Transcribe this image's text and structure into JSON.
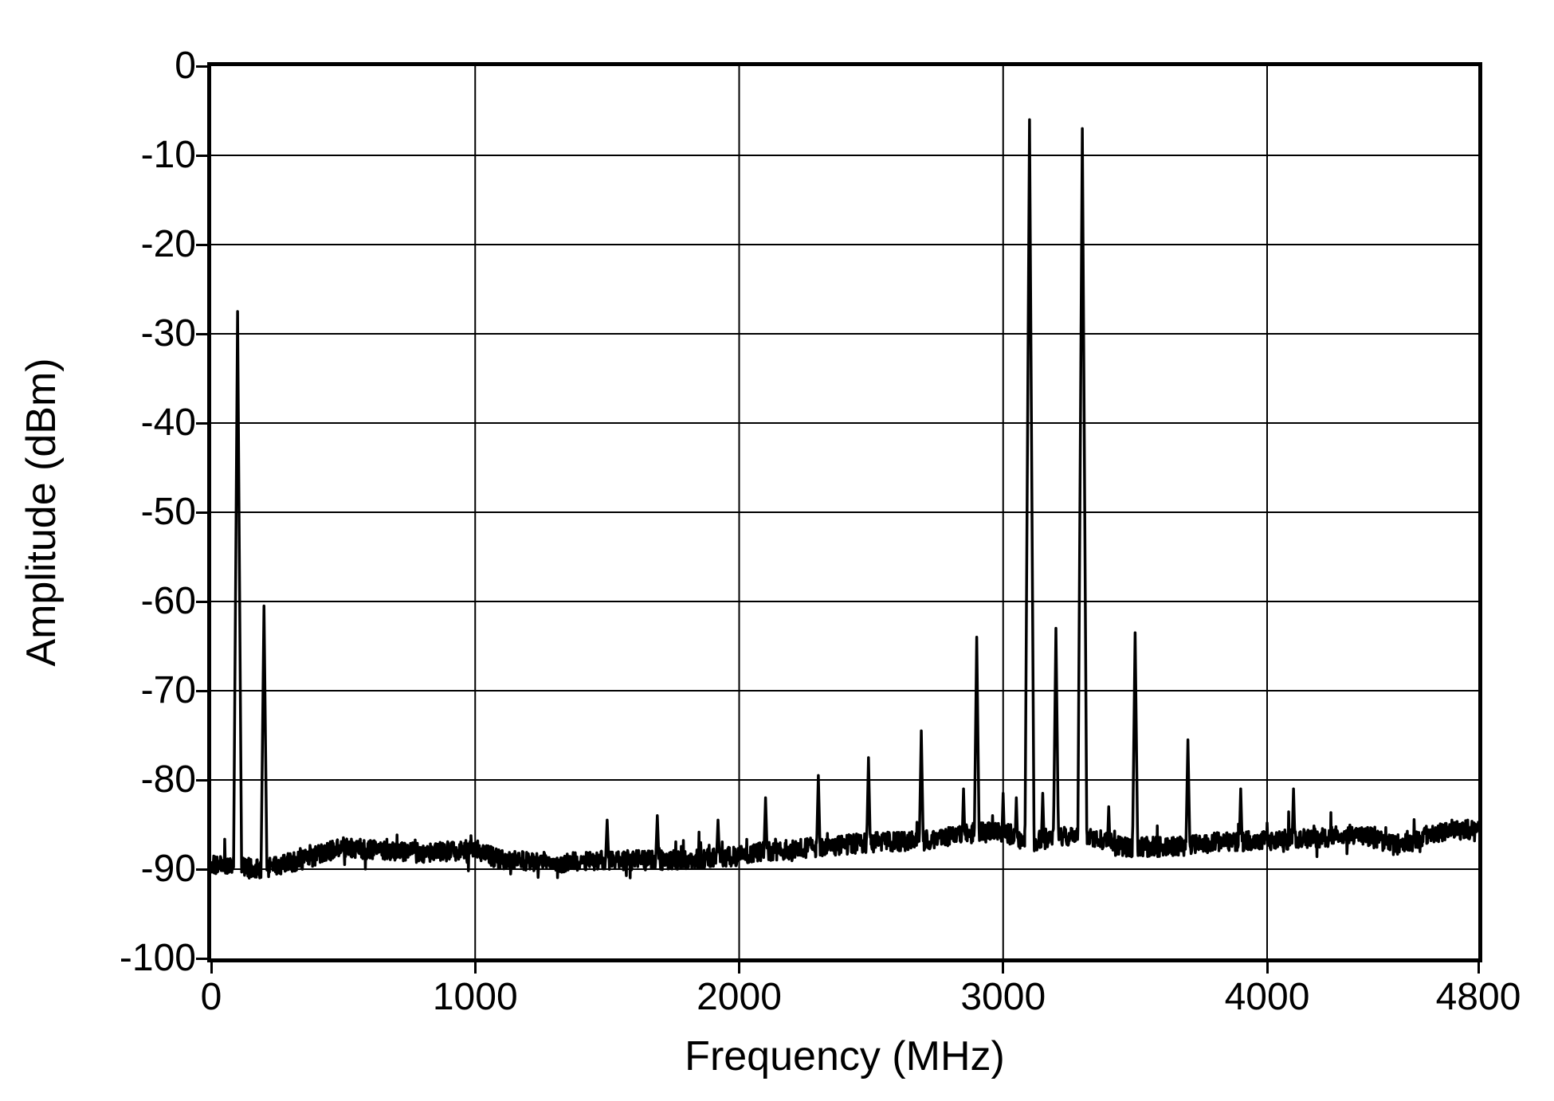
{
  "chart_data": {
    "type": "line",
    "title": "",
    "xlabel": "Frequency (MHz)",
    "ylabel": "Amplitude (dBm)",
    "xlim": [
      0,
      4800
    ],
    "ylim": [
      -100,
      0
    ],
    "grid": true,
    "legend": "none",
    "line_color": "#000000",
    "background_color": "#ffffff",
    "x_ticks": [
      {
        "v": 0,
        "label": "0"
      },
      {
        "v": 1000,
        "label": "1000"
      },
      {
        "v": 2000,
        "label": "2000"
      },
      {
        "v": 3000,
        "label": "3000"
      },
      {
        "v": 4000,
        "label": "4000"
      },
      {
        "v": 4800,
        "label": "4800"
      }
    ],
    "y_ticks": [
      {
        "v": 0,
        "label": "0"
      },
      {
        "v": -10,
        "label": "-10"
      },
      {
        "v": -20,
        "label": "-20"
      },
      {
        "v": -30,
        "label": "-30"
      },
      {
        "v": -40,
        "label": "-40"
      },
      {
        "v": -50,
        "label": "-50"
      },
      {
        "v": -60,
        "label": "-60"
      },
      {
        "v": -70,
        "label": "-70"
      },
      {
        "v": -80,
        "label": "-80"
      },
      {
        "v": -90,
        "label": "-90"
      },
      {
        "v": -100,
        "label": "-100"
      }
    ],
    "x_gridlines": [
      1000,
      2000,
      3000,
      4000
    ],
    "y_gridlines": [
      -10,
      -20,
      -30,
      -40,
      -50,
      -60,
      -70,
      -80,
      -90
    ],
    "noise_floor_profile": [
      [
        0,
        -89.5
      ],
      [
        200,
        -90.0
      ],
      [
        400,
        -88.5
      ],
      [
        500,
        -87.5
      ],
      [
        600,
        -87.8
      ],
      [
        800,
        -88.2
      ],
      [
        1000,
        -87.8
      ],
      [
        1100,
        -89.0
      ],
      [
        1300,
        -89.3
      ],
      [
        1500,
        -89.0
      ],
      [
        1700,
        -89.0
      ],
      [
        1900,
        -88.8
      ],
      [
        2000,
        -88.5
      ],
      [
        2100,
        -88.0
      ],
      [
        2300,
        -87.5
      ],
      [
        2500,
        -87.0
      ],
      [
        2700,
        -86.8
      ],
      [
        2850,
        -86.0
      ],
      [
        3000,
        -85.8
      ],
      [
        3100,
        -87.0
      ],
      [
        3200,
        -86.5
      ],
      [
        3300,
        -86.0
      ],
      [
        3450,
        -87.5
      ],
      [
        3600,
        -87.5
      ],
      [
        3800,
        -87.0
      ],
      [
        4000,
        -86.8
      ],
      [
        4200,
        -86.5
      ],
      [
        4350,
        -86.0
      ],
      [
        4500,
        -87.5
      ],
      [
        4600,
        -86.2
      ],
      [
        4700,
        -85.5
      ],
      [
        4800,
        -85.8
      ]
    ],
    "noise_jitter_db": 1.1,
    "noise_floor_ref_dbm": -91,
    "peaks": [
      {
        "freq": 100,
        "dbm": -27.5
      },
      {
        "freq": 200,
        "dbm": -60.5
      },
      {
        "freq": 1500,
        "dbm": -84.5
      },
      {
        "freq": 1690,
        "dbm": -84.0
      },
      {
        "freq": 1920,
        "dbm": -84.5
      },
      {
        "freq": 2100,
        "dbm": -82.0
      },
      {
        "freq": 2300,
        "dbm": -79.5
      },
      {
        "freq": 2490,
        "dbm": -77.5
      },
      {
        "freq": 2690,
        "dbm": -74.5
      },
      {
        "freq": 2850,
        "dbm": -81.0
      },
      {
        "freq": 2900,
        "dbm": -64.0
      },
      {
        "freq": 2960,
        "dbm": -84.0
      },
      {
        "freq": 3000,
        "dbm": -81.5
      },
      {
        "freq": 3050,
        "dbm": -82.0
      },
      {
        "freq": 3100,
        "dbm": -6.0
      },
      {
        "freq": 3150,
        "dbm": -81.5
      },
      {
        "freq": 3200,
        "dbm": -63.0
      },
      {
        "freq": 3300,
        "dbm": -7.0
      },
      {
        "freq": 3400,
        "dbm": -83.0
      },
      {
        "freq": 3500,
        "dbm": -63.5
      },
      {
        "freq": 3700,
        "dbm": -75.5
      },
      {
        "freq": 3900,
        "dbm": -81.0
      },
      {
        "freq": 4100,
        "dbm": -81.0
      },
      {
        "freq": 4700,
        "dbm": -84.5
      },
      {
        "freq": 4760,
        "dbm": -84.5
      }
    ]
  }
}
